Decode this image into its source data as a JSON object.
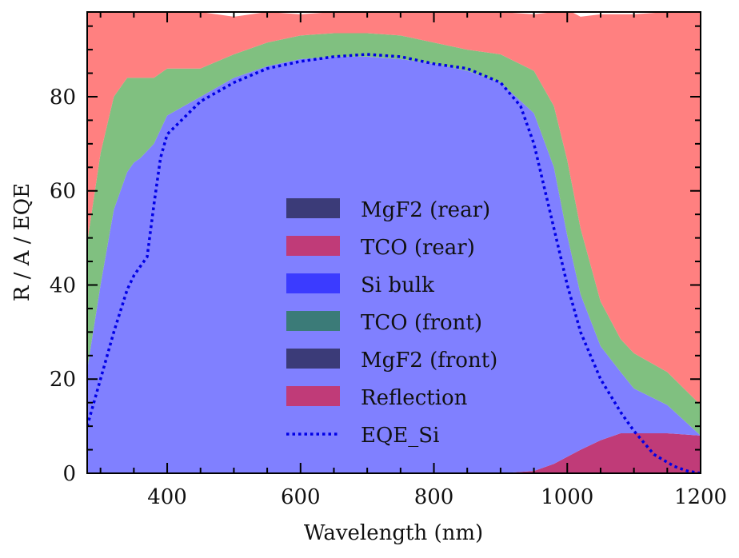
{
  "chart_data": {
    "type": "area",
    "xlabel": "Wavelength (nm)",
    "ylabel": "R / A / EQE",
    "xlim": [
      280,
      1200
    ],
    "ylim": [
      0,
      98
    ],
    "x_ticks": [
      400,
      600,
      800,
      1000,
      1200
    ],
    "y_ticks": [
      0,
      20,
      40,
      60,
      80
    ],
    "x_minor_step": 50,
    "y_minor_step": 5,
    "grid": false,
    "legend_position": "center",
    "stacked": true,
    "x": [
      280,
      300,
      320,
      340,
      350,
      360,
      380,
      400,
      450,
      500,
      550,
      600,
      650,
      700,
      750,
      800,
      850,
      900,
      950,
      980,
      1000,
      1020,
      1050,
      1080,
      1100,
      1150,
      1200
    ],
    "series": [
      {
        "name": "MgF2 (rear)",
        "color": "#3b3b78",
        "values": [
          0,
          0,
          0,
          0,
          0,
          0,
          0,
          0,
          0,
          0,
          0,
          0,
          0,
          0,
          0,
          0,
          0,
          0,
          0,
          0,
          0,
          0,
          0,
          0,
          0,
          0,
          0
        ]
      },
      {
        "name": "TCO (rear)",
        "color": "#c03b78",
        "values": [
          0,
          0,
          0,
          0,
          0,
          0,
          0,
          0,
          0,
          0,
          0,
          0,
          0,
          0,
          0,
          0,
          0,
          0,
          0.5,
          2,
          3.5,
          5,
          7,
          8.5,
          8.5,
          8.5,
          8
        ]
      },
      {
        "name": "Si bulk",
        "color": "#8080ff",
        "values": [
          22,
          40,
          56,
          64,
          66,
          67,
          70,
          76,
          80,
          84,
          86.5,
          88,
          88.5,
          88.5,
          88,
          87,
          85.5,
          83,
          76,
          63,
          47,
          33,
          20,
          13,
          9.5,
          6,
          0
        ]
      },
      {
        "name": "TCO (front)",
        "color": "#80c080",
        "values": [
          27,
          28,
          24,
          20,
          18,
          17,
          14,
          10,
          6,
          5,
          5,
          5,
          5,
          5,
          5,
          4.5,
          4.5,
          6,
          9,
          13,
          16,
          14,
          9.5,
          7,
          7.5,
          7,
          6.5
        ]
      },
      {
        "name": "MgF2 (front)",
        "color": "#3b3b78",
        "values": [
          0,
          0,
          0,
          0,
          0,
          0,
          0,
          0,
          0,
          0,
          0,
          0,
          0,
          0,
          0,
          0,
          0,
          0,
          0,
          0,
          0,
          0,
          0,
          0,
          0,
          0,
          0
        ]
      },
      {
        "name": "Reflection",
        "color": "#ff8080",
        "values": [
          49,
          30,
          18,
          14,
          14,
          15,
          14,
          12,
          12,
          8,
          6.5,
          4.5,
          4.5,
          5,
          5.5,
          7,
          8,
          9,
          12,
          20,
          32,
          45,
          61,
          69,
          72,
          76.5,
          83.5
        ]
      }
    ],
    "line_series": {
      "name": "EQE_Si",
      "color": "#0000e6",
      "style": "dotted",
      "x": [
        280,
        300,
        320,
        340,
        350,
        360,
        370,
        380,
        390,
        400,
        450,
        500,
        550,
        600,
        650,
        700,
        750,
        800,
        850,
        900,
        930,
        950,
        970,
        1000,
        1020,
        1050,
        1080,
        1100,
        1130,
        1160,
        1180,
        1200
      ],
      "y": [
        10,
        20,
        30,
        39,
        42,
        44,
        46,
        57,
        67,
        72,
        79,
        83,
        86,
        87.5,
        88.5,
        89,
        88.5,
        87,
        86,
        83,
        78,
        70,
        58,
        40,
        30,
        20,
        13,
        9,
        4,
        1.5,
        0.5,
        0
      ]
    },
    "legend": {
      "entries": [
        {
          "label": "MgF2 (rear)",
          "color": "#3b3b78",
          "kind": "patch"
        },
        {
          "label": "TCO (rear)",
          "color": "#c03b78",
          "kind": "patch"
        },
        {
          "label": "Si bulk",
          "color": "#3b3bff",
          "kind": "patch"
        },
        {
          "label": "TCO (front)",
          "color": "#3b7b78",
          "kind": "patch"
        },
        {
          "label": "MgF2 (front)",
          "color": "#3b3b78",
          "kind": "patch"
        },
        {
          "label": "Reflection",
          "color": "#c03b78",
          "kind": "patch"
        },
        {
          "label": "EQE_Si",
          "color": "#0000e6",
          "kind": "line"
        }
      ]
    }
  }
}
